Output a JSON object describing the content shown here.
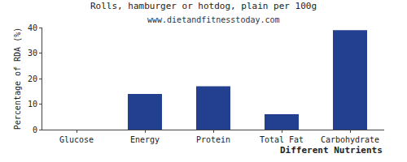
{
  "chart_data": {
    "type": "bar",
    "title": "Rolls, hamburger or hotdog, plain per 100g",
    "subtitle": "www.dietandfitnesstoday.com",
    "x_label": "Different Nutrients",
    "y_label": "Percentage of RDA (%)",
    "categories": [
      "Glucose",
      "Energy",
      "Protein",
      "Total Fat",
      "Carbohydrate"
    ],
    "values": [
      0,
      14,
      17,
      6,
      39
    ],
    "color": "#233f8f",
    "ylim": [
      0,
      40
    ],
    "yticks": [
      0,
      10,
      20,
      30,
      40
    ],
    "grid": false
  }
}
